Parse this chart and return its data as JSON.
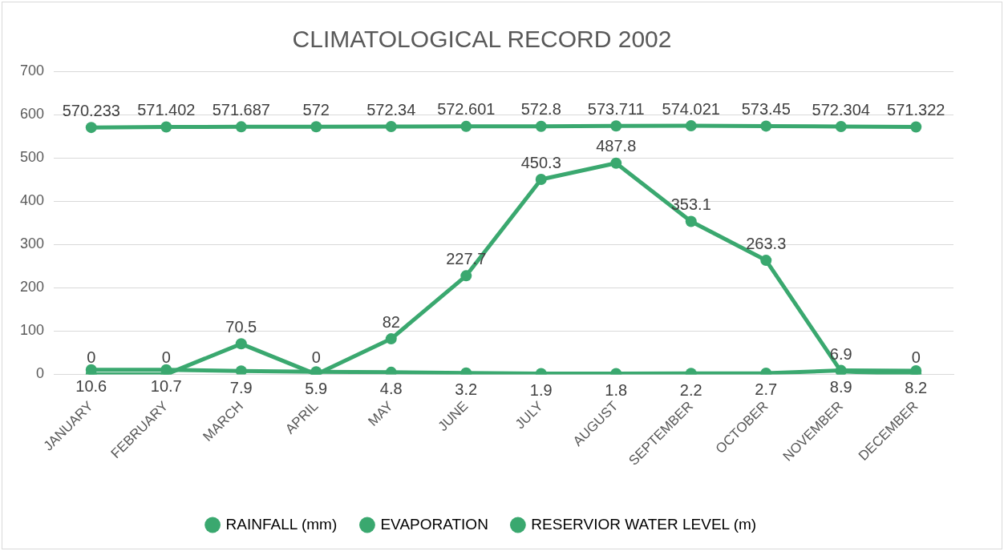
{
  "chart_data": {
    "type": "line",
    "title": "CLIMATOLOGICAL RECORD 2002",
    "categories": [
      "JANUARY",
      "FEBRUARY",
      "MARCH",
      "APRIL",
      "MAY",
      "JUNE",
      "JULY",
      "AUGUST",
      "SEPTEMBER",
      "OCTOBER",
      "NOVEMBER",
      "DECEMBER"
    ],
    "series": [
      {
        "name": "RAINFALL (mm)",
        "color": "#3aa86f",
        "values": [
          0,
          0,
          70.5,
          0,
          82,
          227.7,
          450.3,
          487.8,
          353.1,
          263.3,
          6.9,
          0
        ]
      },
      {
        "name": "EVAPORATION",
        "color": "#3aa86f",
        "values": [
          10.6,
          10.7,
          7.9,
          5.9,
          4.8,
          3.2,
          1.9,
          1.8,
          2.2,
          2.7,
          8.9,
          8.2
        ]
      },
      {
        "name": "RESERVIOR WATER LEVEL (m)",
        "color": "#3aa86f",
        "values": [
          570.233,
          571.402,
          571.687,
          572,
          572.34,
          572.601,
          572.8,
          573.711,
          574.021,
          573.45,
          572.304,
          571.322
        ]
      }
    ],
    "ylim": [
      0,
      700
    ],
    "yticks": [
      0,
      100,
      200,
      300,
      400,
      500,
      600,
      700
    ],
    "grid": "y",
    "legend": "bottom",
    "marker": "circle",
    "data_labels": true
  }
}
